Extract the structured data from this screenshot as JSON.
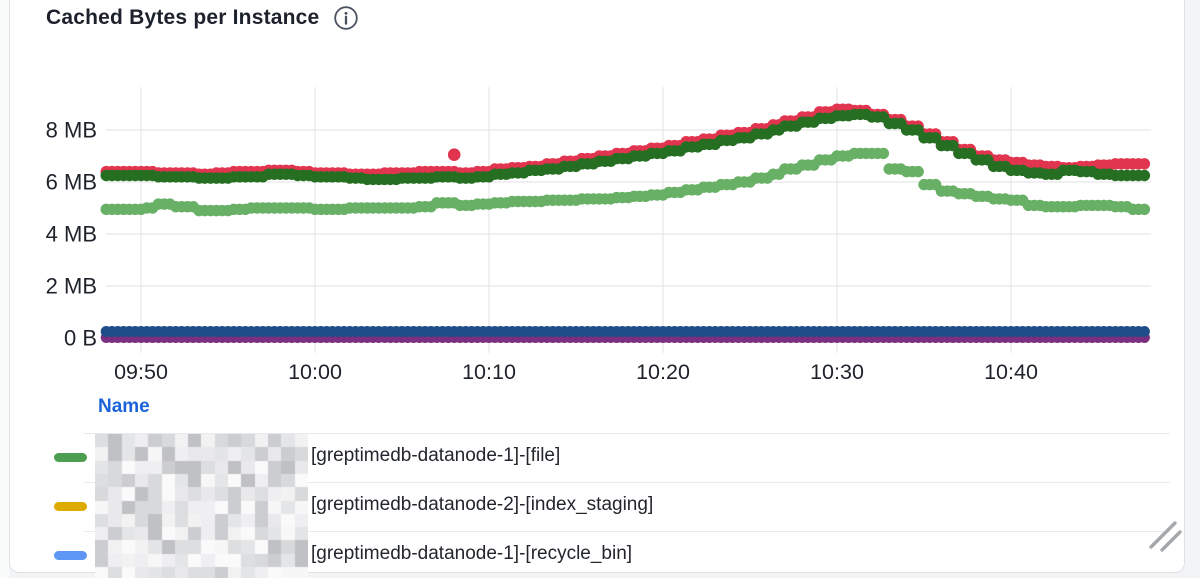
{
  "panel": {
    "title": "Cached Bytes per Instance",
    "info_icon": "info-circle"
  },
  "legend": {
    "header": "Name",
    "rows": [
      {
        "marker_color": "#4d9e50",
        "prefix_redacted": true,
        "label": "[greptimedb-datanode-1]-[file]"
      },
      {
        "marker_color": "#ddaa00",
        "prefix_redacted": true,
        "label": "[greptimedb-datanode-2]-[index_staging]"
      },
      {
        "marker_color": "#5d96f5",
        "prefix_redacted": true,
        "label": "[greptimedb-datanode-1]-[recycle_bin]"
      }
    ]
  },
  "chart_data": {
    "type": "line",
    "title": "Cached Bytes per Instance",
    "style": "dense-dotted-steps",
    "grid": true,
    "legend_position": "bottom-table",
    "x_start": "09:48",
    "x_end": "10:48",
    "step_minutes": 1,
    "x_ticks": [
      "09:50",
      "10:00",
      "10:10",
      "10:20",
      "10:30",
      "10:40"
    ],
    "x_tick_minutes": [
      2,
      12,
      22,
      32,
      42,
      52
    ],
    "y_ticks": [
      {
        "label": "8 MB",
        "mb": 8
      },
      {
        "label": "6 MB",
        "mb": 6
      },
      {
        "label": "4 MB",
        "mb": 4
      },
      {
        "label": "2 MB",
        "mb": 2
      },
      {
        "label": "0 B",
        "mb": 0
      }
    ],
    "ylim_mb": [
      0,
      9.2
    ],
    "series": [
      {
        "name": "red",
        "color": "#e1354f",
        "values_mb": [
          6.4,
          6.4,
          6.4,
          6.35,
          6.35,
          6.3,
          6.35,
          6.4,
          6.4,
          6.45,
          6.45,
          6.4,
          6.35,
          6.35,
          6.3,
          6.3,
          6.35,
          6.35,
          6.4,
          6.4,
          6.35,
          6.4,
          6.5,
          6.55,
          6.6,
          6.7,
          6.8,
          6.9,
          7.0,
          7.1,
          7.2,
          7.3,
          7.4,
          7.55,
          7.65,
          7.8,
          7.9,
          8.05,
          8.2,
          8.35,
          8.5,
          8.7,
          8.8,
          8.75,
          8.6,
          8.4,
          8.15,
          7.85,
          7.55,
          7.25,
          7.0,
          6.85,
          6.75,
          6.65,
          6.6,
          6.55,
          6.6,
          6.65,
          6.7,
          6.7,
          6.8
        ]
      },
      {
        "name": "dark-green",
        "color": "#256e22",
        "values_mb": [
          6.25,
          6.25,
          6.25,
          6.2,
          6.2,
          6.15,
          6.15,
          6.2,
          6.2,
          6.3,
          6.3,
          6.25,
          6.2,
          6.2,
          6.15,
          6.1,
          6.1,
          6.15,
          6.15,
          6.2,
          6.15,
          6.2,
          6.3,
          6.35,
          6.45,
          6.5,
          6.6,
          6.7,
          6.8,
          6.9,
          7.0,
          7.1,
          7.2,
          7.35,
          7.45,
          7.6,
          7.7,
          7.85,
          8.0,
          8.15,
          8.3,
          8.45,
          8.55,
          8.6,
          8.5,
          8.25,
          8.0,
          7.7,
          7.4,
          7.1,
          6.85,
          6.6,
          6.45,
          6.35,
          6.3,
          6.45,
          6.4,
          6.3,
          6.25,
          6.25,
          6.3
        ]
      },
      {
        "name": "light-green",
        "color": "#68b065",
        "values_mb": [
          4.95,
          4.95,
          5.0,
          5.15,
          5.05,
          4.9,
          4.9,
          4.95,
          5.0,
          5.0,
          5.0,
          5.0,
          4.95,
          4.95,
          5.0,
          5.0,
          5.0,
          5.0,
          5.05,
          5.2,
          5.1,
          5.15,
          5.2,
          5.25,
          5.25,
          5.3,
          5.3,
          5.35,
          5.35,
          5.4,
          5.45,
          5.5,
          5.6,
          5.7,
          5.8,
          5.9,
          6.0,
          6.15,
          6.3,
          6.5,
          6.65,
          6.85,
          7.0,
          7.1,
          7.1,
          6.5,
          6.4,
          5.9,
          5.65,
          5.55,
          5.45,
          5.35,
          5.3,
          5.1,
          5.05,
          5.05,
          5.1,
          5.1,
          5.05,
          4.95,
          4.95
        ]
      },
      {
        "name": "purple",
        "color": "#7b2f80",
        "constant_mb": 0.02
      },
      {
        "name": "navy-blue",
        "color": "#1d4e89",
        "constant_mb": 0.25
      }
    ],
    "outlier_points": [
      {
        "series": "red",
        "color": "#e1354f",
        "time": "10:08",
        "value_mb": 7.05
      }
    ]
  }
}
